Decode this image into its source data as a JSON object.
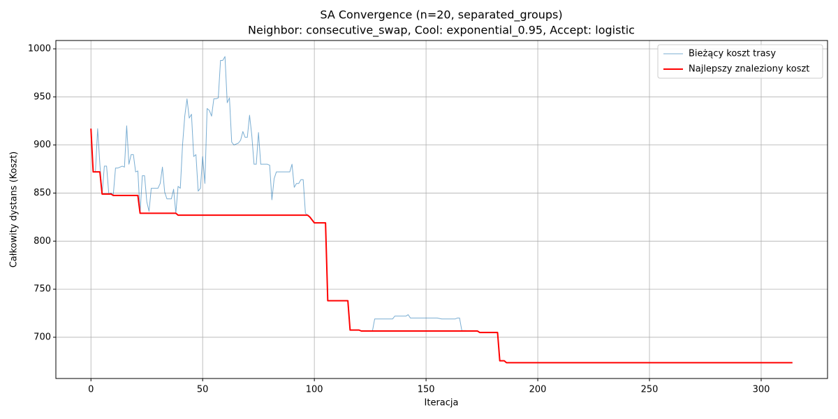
{
  "chart_data": {
    "type": "line",
    "title": "SA Convergence (n=20, separated_groups)",
    "subtitle": "Neighbor: consecutive_swap, Cool: exponential_0.95, Accept: logistic",
    "x_label": "Iteracja",
    "y_label": "Całkowity dystans (Koszt)",
    "xlim": [
      -15.7,
      329.7
    ],
    "xticks": [
      0,
      50,
      100,
      150,
      200,
      250,
      300
    ],
    "ylim": [
      657.1,
      1008.7
    ],
    "yticks": [
      700,
      750,
      800,
      850,
      900,
      950,
      1000
    ],
    "grid": true,
    "legend": "upper right",
    "series": [
      {
        "name": "Bieżący koszt trasy",
        "color": "#1f77b4",
        "line_width": 1,
        "x": [
          0,
          1,
          2,
          3,
          4,
          5,
          6,
          7,
          8,
          9,
          10,
          11,
          12,
          13,
          14,
          15,
          16,
          17,
          18,
          19,
          20,
          21,
          22,
          23,
          24,
          25,
          26,
          27,
          28,
          29,
          30,
          31,
          32,
          33,
          34,
          35,
          36,
          37,
          38,
          39,
          40,
          41,
          42,
          43,
          44,
          45,
          46,
          47,
          48,
          49,
          50,
          51,
          52,
          53,
          54,
          55,
          56,
          57,
          58,
          59,
          60,
          61,
          62,
          63,
          64,
          65,
          66,
          67,
          68,
          69,
          70,
          71,
          72,
          73,
          74,
          75,
          76,
          77,
          78,
          79,
          80,
          81,
          82,
          83,
          84,
          85,
          86,
          87,
          88,
          89,
          90,
          91,
          92,
          93,
          94,
          95,
          96,
          97,
          98,
          99,
          100,
          105,
          106,
          115,
          116,
          120,
          121,
          126,
          127,
          135,
          136,
          141,
          142,
          143,
          155,
          157,
          163,
          164,
          165,
          166,
          173,
          174,
          182,
          183,
          185,
          186,
          314
        ],
        "values": [
          917,
          872,
          872,
          917,
          880,
          849,
          878,
          878,
          849,
          850,
          848,
          876,
          876,
          877,
          878,
          877,
          920,
          880,
          890,
          890,
          872,
          873,
          829,
          868,
          868,
          841,
          831,
          855,
          855,
          855,
          855,
          860,
          877,
          851,
          844,
          844,
          844,
          854,
          829,
          857,
          855,
          900,
          930,
          948,
          928,
          932,
          888,
          890,
          852,
          855,
          888,
          860,
          938,
          936,
          930,
          948,
          948,
          949,
          988,
          988,
          992,
          944,
          949,
          903,
          900,
          901,
          902,
          905,
          914,
          908,
          908,
          931,
          910,
          880,
          880,
          913,
          880,
          880,
          880,
          880,
          879,
          843,
          865,
          872,
          872,
          872,
          872,
          872,
          872,
          872,
          880,
          856,
          860,
          860,
          864,
          864,
          829,
          827,
          825,
          822,
          819,
          819,
          738,
          738,
          707.5,
          707.5,
          706.5,
          706.5,
          719,
          719,
          722,
          722,
          723.5,
          720,
          720,
          719,
          719,
          720,
          720,
          707,
          706.5,
          705,
          705,
          675.5,
          675.5,
          673.5,
          673.5
        ]
      },
      {
        "name": "Najlepszy znaleziony koszt",
        "color": "#ff0000",
        "line_width": 2,
        "x": [
          0,
          1,
          4,
          5,
          9,
          10,
          21,
          22,
          38,
          39,
          97,
          98,
          99,
          100,
          105,
          106,
          115,
          116,
          120,
          121,
          173,
          174,
          182,
          183,
          185,
          186,
          314
        ],
        "values": [
          917,
          872,
          872,
          849,
          849,
          847.5,
          847.5,
          829,
          829,
          827,
          827,
          825,
          822,
          819,
          819,
          738,
          738,
          707.5,
          707.5,
          706.5,
          706.5,
          705,
          705,
          675.5,
          675.5,
          673.5,
          673.5
        ]
      }
    ]
  }
}
